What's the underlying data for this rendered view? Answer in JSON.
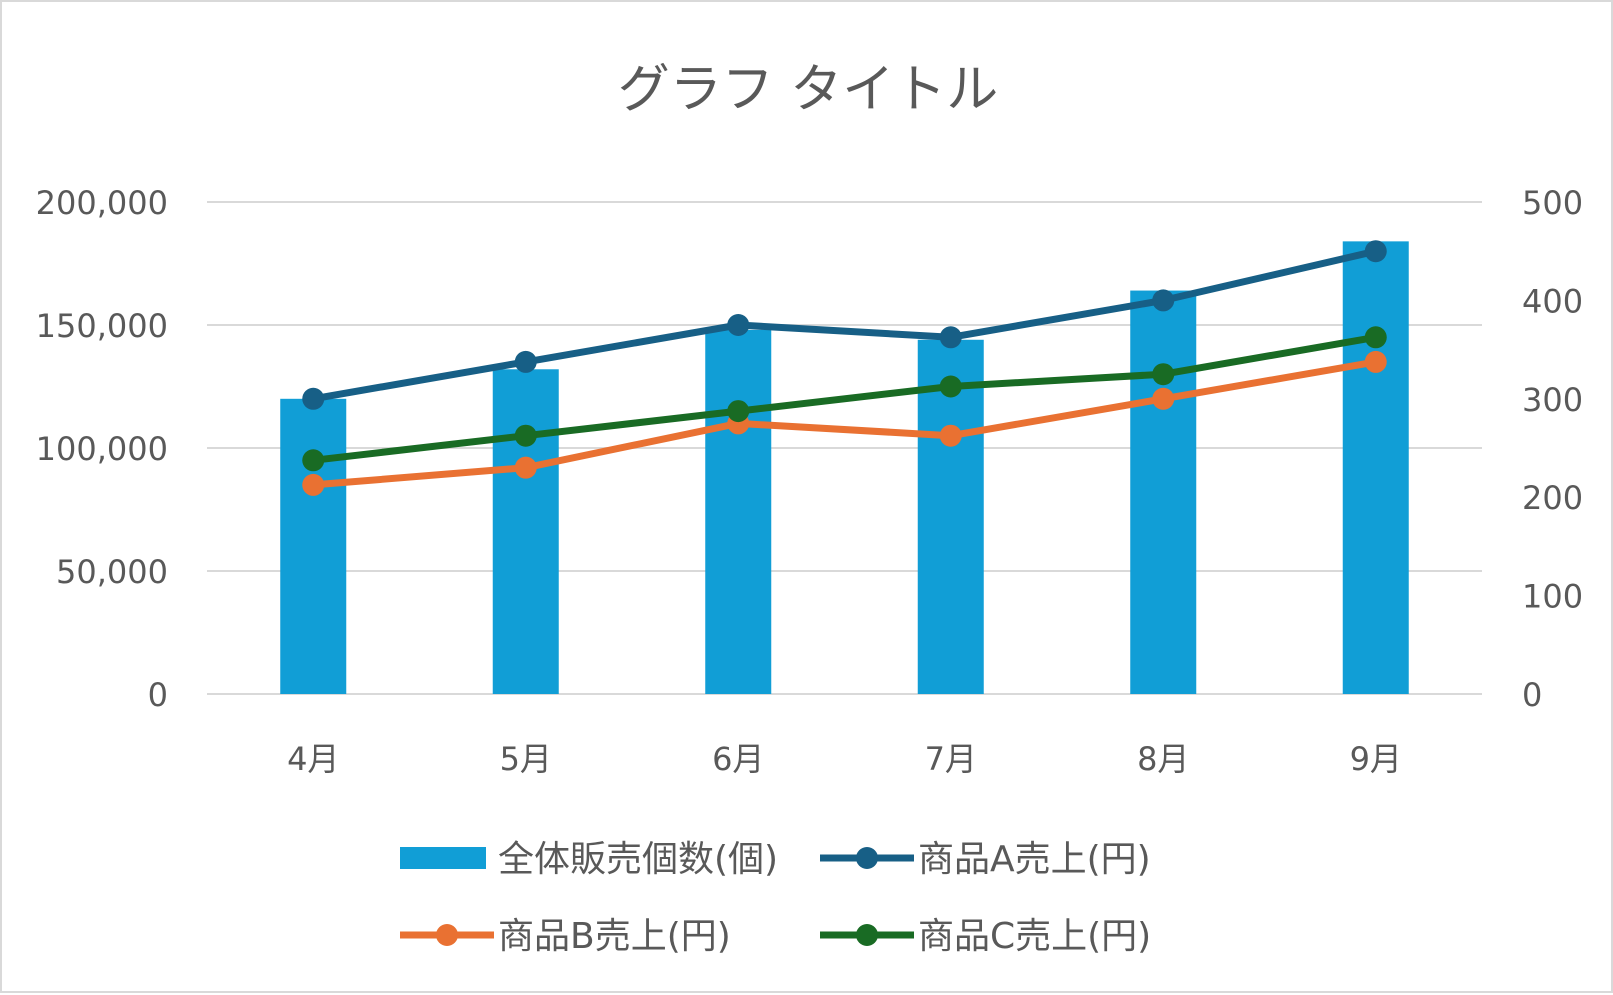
{
  "chart_data": {
    "type": "bar+line",
    "title": "グラフ タイトル",
    "categories": [
      "4月",
      "5月",
      "6月",
      "7月",
      "8月",
      "9月"
    ],
    "primary_axis": {
      "min": 0,
      "max": 200000,
      "ticks": [
        "0",
        "50,000",
        "100,000",
        "150,000",
        "200,000"
      ],
      "tick_values": [
        0,
        50000,
        100000,
        150000,
        200000
      ]
    },
    "secondary_axis": {
      "min": 0,
      "max": 500,
      "ticks": [
        "0",
        "100",
        "200",
        "300",
        "400",
        "500"
      ],
      "tick_values": [
        0,
        100,
        200,
        300,
        400,
        500
      ]
    },
    "grid": true,
    "legend_position": "bottom",
    "series": [
      {
        "name": "全体販売個数(個)",
        "type": "bar",
        "axis": "secondary",
        "color": "#119ED6",
        "values": [
          300,
          330,
          370,
          360,
          410,
          460
        ]
      },
      {
        "name": "商品A売上(円)",
        "type": "line",
        "axis": "primary",
        "color": "#175F86",
        "values": [
          120000,
          135000,
          150000,
          145000,
          160000,
          180000
        ]
      },
      {
        "name": "商品B売上(円)",
        "type": "line",
        "axis": "primary",
        "color": "#E97132",
        "values": [
          85000,
          92000,
          110000,
          105000,
          120000,
          135000
        ]
      },
      {
        "name": "商品C売上(円)",
        "type": "line",
        "axis": "primary",
        "color": "#196B24",
        "values": [
          95000,
          105000,
          115000,
          125000,
          130000,
          145000
        ]
      }
    ]
  }
}
